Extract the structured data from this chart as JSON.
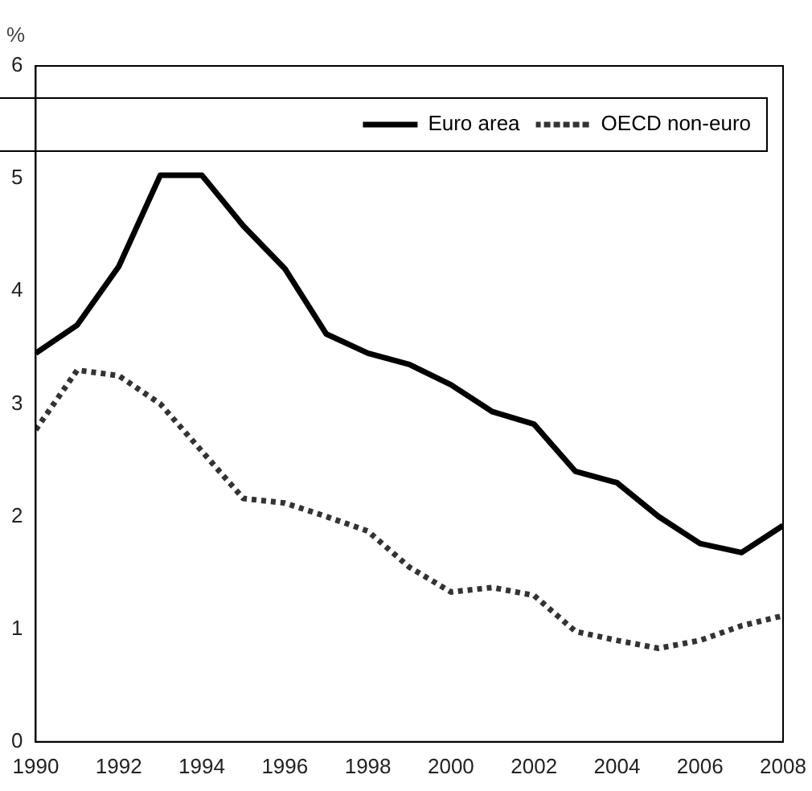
{
  "chart_data": {
    "type": "line",
    "ylabel": "%",
    "x": [
      1990,
      1991,
      1992,
      1993,
      1994,
      1995,
      1996,
      1997,
      1998,
      1999,
      2000,
      2001,
      2002,
      2003,
      2004,
      2005,
      2006,
      2007,
      2008
    ],
    "series": [
      {
        "name": "Euro area",
        "color": "#000000",
        "line_style": "solid",
        "values": [
          3.45,
          3.7,
          4.22,
          5.03,
          5.03,
          4.58,
          4.2,
          3.62,
          3.45,
          3.35,
          3.17,
          2.93,
          2.82,
          2.4,
          2.3,
          2.0,
          1.76,
          1.68,
          1.92
        ]
      },
      {
        "name": "OECD non-euro",
        "color": "#333333",
        "line_style": "dotted",
        "values": [
          2.77,
          3.3,
          3.25,
          3.0,
          2.58,
          2.16,
          2.12,
          2.0,
          1.87,
          1.55,
          1.33,
          1.37,
          1.3,
          0.98,
          0.9,
          0.83,
          0.9,
          1.03,
          1.12
        ]
      }
    ],
    "xlim": [
      1990,
      2008
    ],
    "xticks": [
      1990,
      1992,
      1994,
      1996,
      1998,
      2000,
      2002,
      2004,
      2006,
      2008
    ],
    "ylim": [
      0,
      6
    ],
    "yticks": [
      0,
      1,
      2,
      3,
      4,
      5,
      6
    ],
    "grid": false,
    "legend": "top right",
    "marker": "none"
  }
}
